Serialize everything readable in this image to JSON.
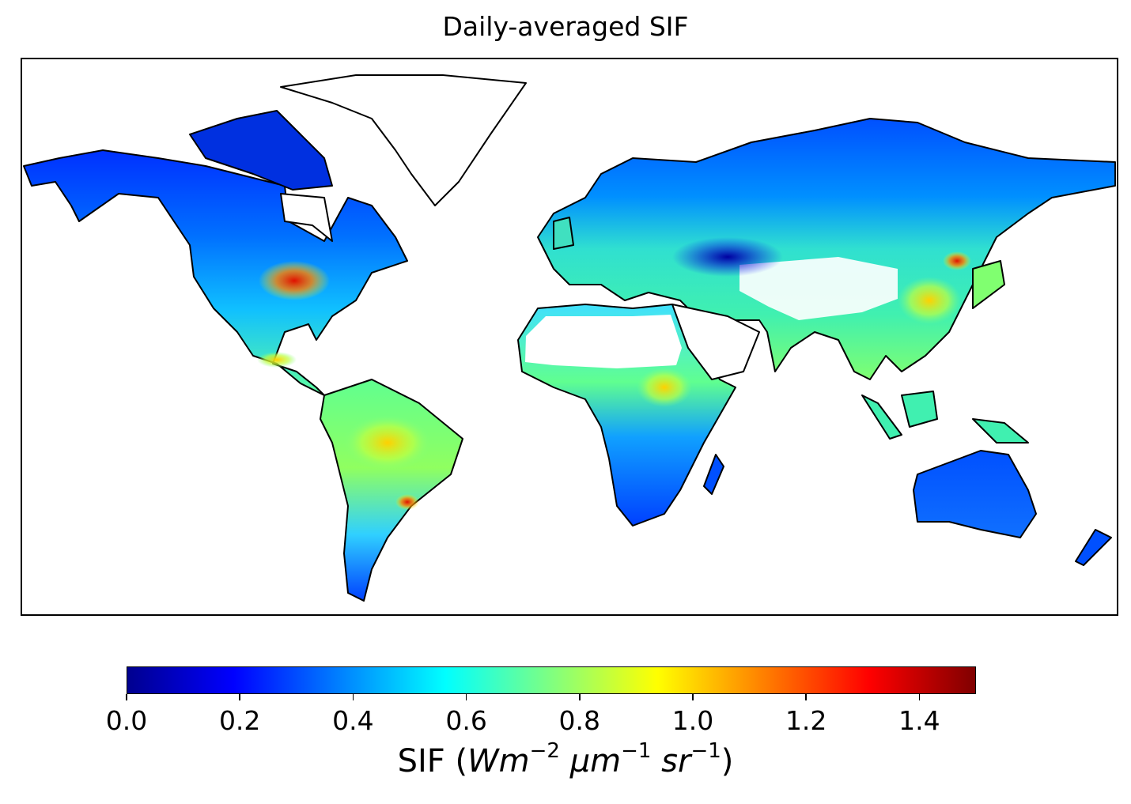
{
  "title": "Daily-averaged SIF",
  "colorbar": {
    "colormap": "jet",
    "range": [
      0.0,
      1.5
    ],
    "ticks": [
      "0.0",
      "0.2",
      "0.4",
      "0.6",
      "0.8",
      "1.0",
      "1.2",
      "1.4"
    ],
    "tick_values": [
      0.0,
      0.2,
      0.4,
      0.6,
      0.8,
      1.0,
      1.2,
      1.4
    ],
    "label": {
      "prefix": "SIF (",
      "unit1": "Wm",
      "exp1": "−2",
      "unit2": "μm",
      "exp2": "−1",
      "unit3": "sr",
      "exp3": "−1",
      "suffix": ")"
    }
  },
  "map": {
    "projection": "equirectangular",
    "extent": {
      "lon": [
        -180,
        180
      ],
      "lat": [
        -90,
        90
      ]
    },
    "variable": "SIF",
    "hotspots": [
      "US Corn Belt",
      "Amazon",
      "Eastern China",
      "Central Africa"
    ]
  }
}
